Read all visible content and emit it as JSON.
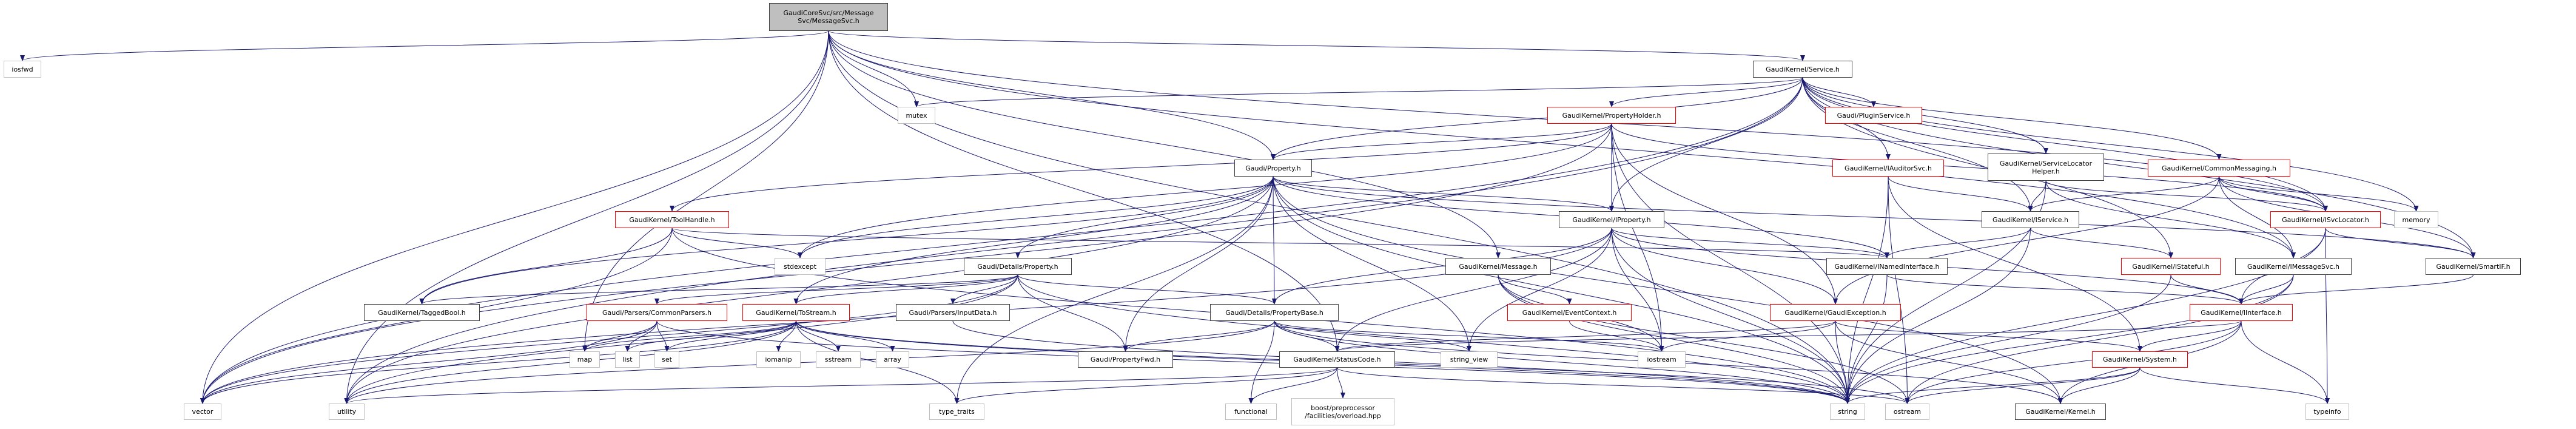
{
  "colors": {
    "edge": "#191970",
    "main_fill": "#bfbfbf",
    "truncated_border": "#ff0000",
    "documented_border": "#404040",
    "external_border": "#bfbfbf"
  },
  "nodes": [
    {
      "id": "main",
      "label": "GaudiCoreSvc/src/Message\nSvc/MessageSvc.h",
      "kind": "main"
    },
    {
      "id": "iosfwd",
      "label": "iosfwd",
      "kind": "external"
    },
    {
      "id": "vector",
      "label": "vector",
      "kind": "external"
    },
    {
      "id": "utility",
      "label": "utility",
      "kind": "external"
    },
    {
      "id": "taggedbool",
      "label": "GaudiKernel/TaggedBool.h",
      "kind": "documented"
    },
    {
      "id": "map",
      "label": "map",
      "kind": "external"
    },
    {
      "id": "list",
      "label": "list",
      "kind": "external"
    },
    {
      "id": "set",
      "label": "set",
      "kind": "external"
    },
    {
      "id": "mutex",
      "label": "mutex",
      "kind": "external"
    },
    {
      "id": "toolhandle",
      "label": "GaudiKernel/ToolHandle.h",
      "kind": "truncated"
    },
    {
      "id": "stdexcept",
      "label": "stdexcept",
      "kind": "external"
    },
    {
      "id": "detprop",
      "label": "Gaudi/Details/Property.h",
      "kind": "documented"
    },
    {
      "id": "commonparsers",
      "label": "Gaudi/Parsers/CommonParsers.h",
      "kind": "truncated"
    },
    {
      "id": "tostream",
      "label": "GaudiKernel/ToStream.h",
      "kind": "truncated"
    },
    {
      "id": "inputdata",
      "label": "Gaudi/Parsers/InputData.h",
      "kind": "documented"
    },
    {
      "id": "iomanip",
      "label": "iomanip",
      "kind": "external"
    },
    {
      "id": "sstream",
      "label": "sstream",
      "kind": "external"
    },
    {
      "id": "array",
      "label": "array",
      "kind": "external"
    },
    {
      "id": "propfwd",
      "label": "Gaudi/PropertyFwd.h",
      "kind": "documented"
    },
    {
      "id": "typetraits",
      "label": "type_traits",
      "kind": "external"
    },
    {
      "id": "functional",
      "label": "functional",
      "kind": "external"
    },
    {
      "id": "property",
      "label": "Gaudi/Property.h",
      "kind": "documented"
    },
    {
      "id": "service",
      "label": "GaudiKernel/Service.h",
      "kind": "documented"
    },
    {
      "id": "propholder",
      "label": "GaudiKernel/PropertyHolder.h",
      "kind": "truncated"
    },
    {
      "id": "plugin",
      "label": "Gaudi/PluginService.h",
      "kind": "truncated"
    },
    {
      "id": "iauditor",
      "label": "GaudiKernel/IAuditorSvc.h",
      "kind": "truncated"
    },
    {
      "id": "iproperty",
      "label": "GaudiKernel/IProperty.h",
      "kind": "documented"
    },
    {
      "id": "message",
      "label": "GaudiKernel/Message.h",
      "kind": "documented"
    },
    {
      "id": "inamed",
      "label": "GaudiKernel/INamedInterface.h",
      "kind": "documented"
    },
    {
      "id": "propbase",
      "label": "Gaudi/Details/PropertyBase.h",
      "kind": "documented"
    },
    {
      "id": "eventctx",
      "label": "GaudiKernel/EventContext.h",
      "kind": "truncated"
    },
    {
      "id": "gaudiexc",
      "label": "GaudiKernel/GaudiException.h",
      "kind": "truncated"
    },
    {
      "id": "statuscode",
      "label": "GaudiKernel/StatusCode.h",
      "kind": "documented"
    },
    {
      "id": "stringview",
      "label": "string_view",
      "kind": "external"
    },
    {
      "id": "iostream",
      "label": "iostream",
      "kind": "external"
    },
    {
      "id": "boost",
      "label": "boost/preprocessor\n/facilities/overload.hpp",
      "kind": "external"
    },
    {
      "id": "string",
      "label": "string",
      "kind": "external"
    },
    {
      "id": "slhelper",
      "label": "GaudiKernel/ServiceLocator\nHelper.h",
      "kind": "documented"
    },
    {
      "id": "commonmsg",
      "label": "GaudiKernel/CommonMessaging.h",
      "kind": "truncated"
    },
    {
      "id": "iservice",
      "label": "GaudiKernel/IService.h",
      "kind": "documented"
    },
    {
      "id": "isvcloc",
      "label": "GaudiKernel/ISvcLocator.h",
      "kind": "truncated"
    },
    {
      "id": "memory",
      "label": "memory",
      "kind": "external"
    },
    {
      "id": "istateful",
      "label": "GaudiKernel/IStateful.h",
      "kind": "truncated"
    },
    {
      "id": "imsgsvc",
      "label": "GaudiKernel/IMessageSvc.h",
      "kind": "documented"
    },
    {
      "id": "smartif",
      "label": "GaudiKernel/SmartIF.h",
      "kind": "documented"
    },
    {
      "id": "iinterface",
      "label": "GaudiKernel/IInterface.h",
      "kind": "truncated"
    },
    {
      "id": "system",
      "label": "GaudiKernel/System.h",
      "kind": "truncated"
    },
    {
      "id": "ostream",
      "label": "ostream",
      "kind": "external"
    },
    {
      "id": "kernel",
      "label": "GaudiKernel/Kernel.h",
      "kind": "documented"
    },
    {
      "id": "typeinfo",
      "label": "typeinfo",
      "kind": "external"
    }
  ],
  "edges": [
    [
      "main",
      "iosfwd"
    ],
    [
      "main",
      "vector"
    ],
    [
      "main",
      "map"
    ],
    [
      "main",
      "utility"
    ],
    [
      "main",
      "mutex"
    ],
    [
      "main",
      "service"
    ],
    [
      "main",
      "property"
    ],
    [
      "main",
      "message"
    ],
    [
      "main",
      "imsgsvc"
    ],
    [
      "main",
      "isvcloc"
    ],
    [
      "main",
      "string"
    ],
    [
      "main",
      "statuscode"
    ],
    [
      "service",
      "propholder"
    ],
    [
      "service",
      "plugin"
    ],
    [
      "service",
      "iauditor"
    ],
    [
      "service",
      "slhelper"
    ],
    [
      "service",
      "commonmsg"
    ],
    [
      "service",
      "iservice"
    ],
    [
      "service",
      "isvcloc"
    ],
    [
      "service",
      "istateful"
    ],
    [
      "service",
      "smartif"
    ],
    [
      "service",
      "memory"
    ],
    [
      "service",
      "mutex"
    ],
    [
      "service",
      "property"
    ],
    [
      "service",
      "iproperty"
    ],
    [
      "service",
      "vector"
    ],
    [
      "service",
      "utility"
    ],
    [
      "propholder",
      "property"
    ],
    [
      "propholder",
      "iproperty"
    ],
    [
      "propholder",
      "gaudiexc"
    ],
    [
      "propholder",
      "iostream"
    ],
    [
      "propholder",
      "string"
    ],
    [
      "propholder",
      "stdexcept"
    ],
    [
      "propholder",
      "vector"
    ],
    [
      "propholder",
      "toolhandle"
    ],
    [
      "propholder",
      "isvcloc"
    ],
    [
      "property",
      "detprop"
    ],
    [
      "property",
      "propbase"
    ],
    [
      "property",
      "propfwd"
    ],
    [
      "property",
      "iproperty"
    ],
    [
      "property",
      "tostream"
    ],
    [
      "property",
      "stdexcept"
    ],
    [
      "property",
      "string"
    ],
    [
      "property",
      "stringview"
    ],
    [
      "property",
      "utility"
    ],
    [
      "property",
      "typetraits"
    ],
    [
      "property",
      "taggedbool"
    ],
    [
      "property",
      "inamed"
    ],
    [
      "property",
      "smartif"
    ],
    [
      "property",
      "kernel"
    ],
    [
      "toolhandle",
      "taggedbool"
    ],
    [
      "toolhandle",
      "stdexcept"
    ],
    [
      "toolhandle",
      "inamed"
    ],
    [
      "toolhandle",
      "vector"
    ],
    [
      "toolhandle",
      "string"
    ],
    [
      "iproperty",
      "inamed"
    ],
    [
      "iproperty",
      "iinterface"
    ],
    [
      "iproperty",
      "statuscode"
    ],
    [
      "iproperty",
      "propbase"
    ],
    [
      "iproperty",
      "gaudiexc"
    ],
    [
      "iproperty",
      "string"
    ],
    [
      "iproperty",
      "iostream"
    ],
    [
      "iproperty",
      "stringview"
    ],
    [
      "iproperty",
      "vector"
    ],
    [
      "detprop",
      "propbase"
    ],
    [
      "detprop",
      "inputdata"
    ],
    [
      "detprop",
      "tostream"
    ],
    [
      "detprop",
      "commonparsers"
    ],
    [
      "detprop",
      "propfwd"
    ],
    [
      "detprop",
      "taggedbool"
    ],
    [
      "detprop",
      "string"
    ],
    [
      "detprop",
      "utility"
    ],
    [
      "detprop",
      "vector"
    ],
    [
      "commonparsers",
      "map"
    ],
    [
      "commonparsers",
      "list"
    ],
    [
      "commonparsers",
      "set"
    ],
    [
      "commonparsers",
      "vector"
    ],
    [
      "commonparsers",
      "string"
    ],
    [
      "tostream",
      "map"
    ],
    [
      "tostream",
      "list"
    ],
    [
      "tostream",
      "set"
    ],
    [
      "tostream",
      "iomanip"
    ],
    [
      "tostream",
      "sstream"
    ],
    [
      "tostream",
      "array"
    ],
    [
      "tostream",
      "vector"
    ],
    [
      "tostream",
      "utility"
    ],
    [
      "tostream",
      "typetraits"
    ],
    [
      "tostream",
      "string"
    ],
    [
      "tostream",
      "ostream"
    ],
    [
      "inputdata",
      "string"
    ],
    [
      "propbase",
      "statuscode"
    ],
    [
      "propbase",
      "stringview"
    ],
    [
      "propbase",
      "iostream"
    ],
    [
      "propbase",
      "functional"
    ],
    [
      "propbase",
      "string"
    ],
    [
      "propbase",
      "propfwd"
    ],
    [
      "propbase",
      "kernel"
    ],
    [
      "propbase",
      "utility"
    ],
    [
      "message",
      "eventctx"
    ],
    [
      "message",
      "iostream"
    ],
    [
      "message",
      "string"
    ],
    [
      "message",
      "ostream"
    ],
    [
      "eventctx",
      "iostream"
    ],
    [
      "gaudiexc",
      "statuscode"
    ],
    [
      "gaudiexc",
      "iostream"
    ],
    [
      "gaudiexc",
      "string"
    ],
    [
      "gaudiexc",
      "kernel"
    ],
    [
      "gaudiexc",
      "system"
    ],
    [
      "statuscode",
      "boost"
    ],
    [
      "statuscode",
      "functional"
    ],
    [
      "statuscode",
      "ostream"
    ],
    [
      "statuscode",
      "typetraits"
    ],
    [
      "statuscode",
      "utility"
    ],
    [
      "inamed",
      "iinterface"
    ],
    [
      "inamed",
      "string"
    ],
    [
      "iauditor",
      "iservice"
    ],
    [
      "iauditor",
      "system"
    ],
    [
      "iauditor",
      "string"
    ],
    [
      "iauditor",
      "ostream"
    ],
    [
      "slhelper",
      "iservice"
    ],
    [
      "slhelper",
      "isvcloc"
    ],
    [
      "slhelper",
      "imsgsvc"
    ],
    [
      "slhelper",
      "string"
    ],
    [
      "commonmsg",
      "iservice"
    ],
    [
      "commonmsg",
      "isvcloc"
    ],
    [
      "commonmsg",
      "imsgsvc"
    ],
    [
      "commonmsg",
      "memory"
    ],
    [
      "commonmsg",
      "smartif"
    ],
    [
      "commonmsg",
      "gaudiexc"
    ],
    [
      "iservice",
      "inamed"
    ],
    [
      "iservice",
      "istateful"
    ],
    [
      "iservice",
      "string"
    ],
    [
      "isvcloc",
      "smartif"
    ],
    [
      "isvcloc",
      "iinterface"
    ],
    [
      "isvcloc",
      "string"
    ],
    [
      "isvcloc",
      "typeinfo"
    ],
    [
      "istateful",
      "iinterface"
    ],
    [
      "istateful",
      "string"
    ],
    [
      "imsgsvc",
      "iinterface"
    ],
    [
      "imsgsvc",
      "ostream"
    ],
    [
      "imsgsvc",
      "string"
    ],
    [
      "smartif",
      "iinterface"
    ],
    [
      "iinterface",
      "system"
    ],
    [
      "iinterface",
      "kernel"
    ],
    [
      "iinterface",
      "typeinfo"
    ],
    [
      "iinterface",
      "ostream"
    ],
    [
      "iinterface",
      "statuscode"
    ],
    [
      "system",
      "kernel"
    ],
    [
      "system",
      "typeinfo"
    ],
    [
      "system",
      "string"
    ],
    [
      "system",
      "ostream"
    ]
  ]
}
